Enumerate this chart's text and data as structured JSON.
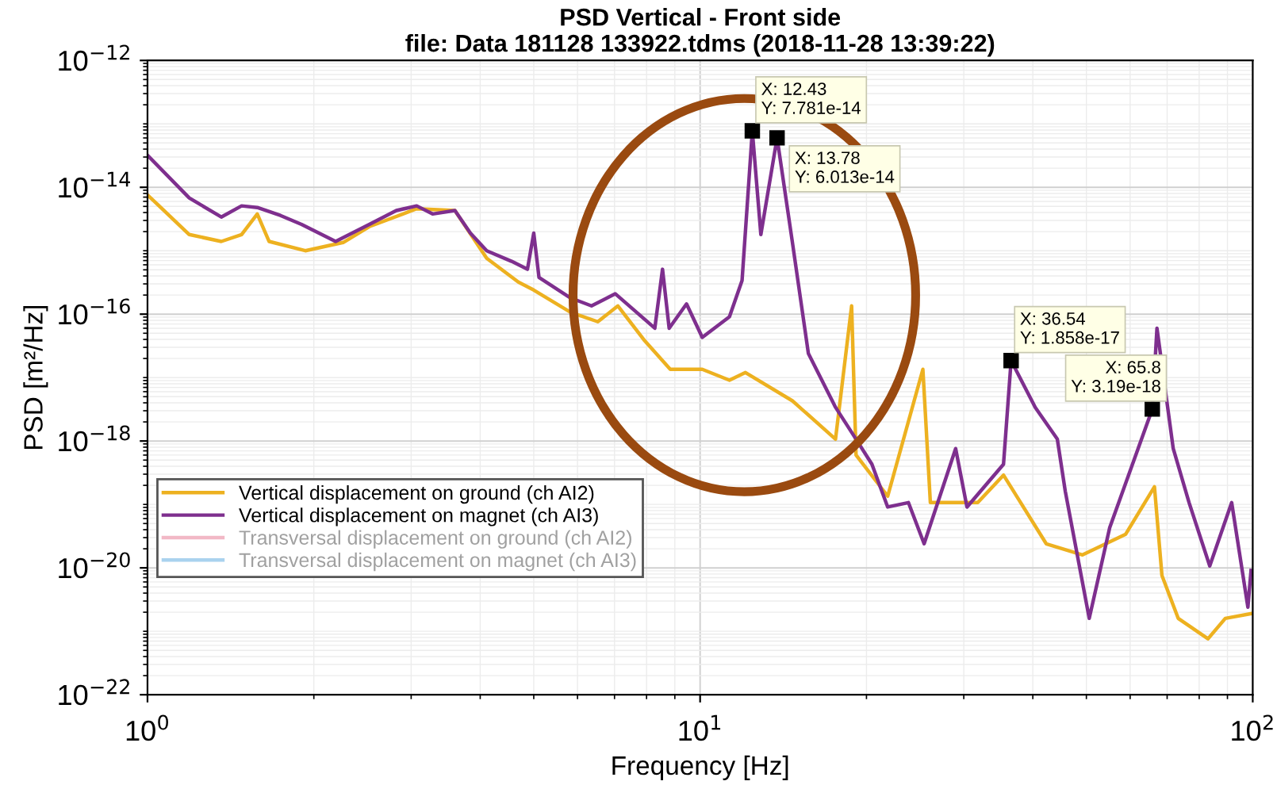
{
  "chart_data": {
    "type": "line",
    "title": "PSD Vertical - Front side",
    "subtitle": "file: Data 181128 133922.tdms (2018-11-28 13:39:22)",
    "xlabel": "Frequency [Hz]",
    "ylabel": "PSD [m²/Hz]",
    "log": "xy",
    "grid": true,
    "legend": "bottom left",
    "xlim": [
      1,
      100
    ],
    "xticks": [
      {
        "value": 1,
        "label": "10$^{0}$"
      },
      {
        "value": 10,
        "label": "10$^{1}$"
      },
      {
        "value": 100,
        "label": "10$^{2}$"
      }
    ],
    "ylim": [
      1e-22,
      1e-12
    ],
    "yticks": [
      {
        "value": 1e-22,
        "label": "10$^{−22}$"
      },
      {
        "value": 1e-20,
        "label": "10$^{−20}$"
      },
      {
        "value": 1e-18,
        "label": "10$^{−18}$"
      },
      {
        "value": 1e-16,
        "label": "10$^{−16}$"
      },
      {
        "value": 1e-14,
        "label": "10$^{−14}$"
      },
      {
        "value": 1e-12,
        "label": "10$^{−12}$"
      }
    ],
    "series": [
      {
        "name": "Vertical displacement on ground (ch AI2)",
        "color": "#edb120",
        "x": [
          1,
          1.19,
          1.36,
          1.48,
          1.58,
          1.66,
          1.93,
          2.26,
          2.52,
          3.07,
          3.6,
          4.11,
          4.69,
          5.0,
          5.83,
          6.53,
          7.1,
          7.94,
          8.83,
          10.09,
          11.3,
          12.08,
          14.69,
          17.58,
          18.8,
          19.15,
          21.85,
          25.3,
          26.1,
          31.8,
          35.4,
          42.3,
          49.2,
          58.9,
          66.4,
          68.5,
          73.3,
          83.0,
          89.2,
          99.3
        ],
        "values": [
          7.6e-15,
          1.8e-15,
          1.4e-15,
          1.8e-15,
          3.8e-15,
          1.4e-15,
          1e-15,
          1.35e-15,
          2.4e-15,
          4.6e-15,
          4.3e-15,
          7.6e-16,
          3.2e-16,
          2.4e-16,
          1.07e-16,
          7.6e-17,
          1.35e-16,
          3.8e-17,
          1.35e-17,
          1.35e-17,
          9.1e-18,
          1.2e-17,
          4.3e-18,
          1.07e-18,
          1.35e-16,
          6e-19,
          1.35e-19,
          1.35e-17,
          1.07e-19,
          1.07e-19,
          2.9e-19,
          2.4e-20,
          1.6e-20,
          3.4e-20,
          1.9e-19,
          7.6e-21,
          1.6e-21,
          7.6e-22,
          1.6e-21,
          1.9e-21
        ]
      },
      {
        "name": "Vertical displacement on magnet (ch AI3)",
        "color": "#7e2f8e",
        "x": [
          1,
          1.19,
          1.36,
          1.48,
          1.58,
          1.74,
          1.9,
          2.19,
          2.52,
          2.82,
          3.07,
          3.28,
          3.6,
          3.84,
          4.11,
          4.56,
          4.87,
          5.0,
          5.11,
          5.83,
          6.36,
          7.02,
          8.28,
          8.55,
          8.79,
          9.45,
          10.09,
          11.3,
          11.91,
          12.43,
          12.88,
          13.78,
          14.69,
          15.7,
          17.58,
          19.15,
          20.46,
          21.85,
          23.82,
          25.43,
          29.0,
          30.4,
          35.4,
          36.54,
          40.4,
          44.3,
          45.8,
          50.6,
          55.1,
          65.8,
          67.1,
          71.8,
          76.7,
          83.6,
          91.6,
          98.0,
          99.3
        ],
        "values": [
          3.2e-14,
          6.8e-15,
          3.4e-15,
          5.1e-15,
          4.8e-15,
          3.6e-15,
          2.6e-15,
          1.4e-15,
          2.6e-15,
          4.3e-15,
          5.1e-15,
          3.8e-15,
          4.3e-15,
          1.9e-15,
          1e-15,
          6.8e-16,
          5.1e-16,
          1.9e-15,
          3.8e-16,
          1.8e-16,
          1.35e-16,
          2.1e-16,
          6e-17,
          5.1e-16,
          6e-17,
          1.45e-16,
          4.3e-17,
          9.1e-17,
          3.4e-16,
          7.781e-14,
          1.8e-15,
          6.013e-14,
          1.35e-15,
          2.4e-17,
          3.4e-18,
          1.07e-18,
          4.3e-19,
          9.1e-20,
          1.07e-19,
          2.4e-20,
          7.6e-19,
          9.1e-20,
          4.3e-19,
          1.858e-17,
          3.4e-18,
          1.07e-18,
          1.6e-19,
          1.6e-21,
          4.3e-20,
          3.19e-18,
          6e-17,
          7.6e-19,
          1.07e-19,
          1.07e-20,
          1.07e-19,
          2.4e-21,
          9.1e-21
        ]
      },
      {
        "name": "Transversal displacement on ground (ch AI2)",
        "color": "#f2b8c6"
      },
      {
        "name": "Transversal displacement on magnet (ch AI3)",
        "color": "#a9d2ee"
      }
    ],
    "annotations": [
      {
        "text": "X: 12.43\nY: 7.781e-14",
        "x": 12.43,
        "y": 7.781e-14
      },
      {
        "text": "X: 13.78\nY: 6.013e-14",
        "x": 13.78,
        "y": 6.013e-14
      },
      {
        "text": "X: 36.54\nY: 1.858e-17",
        "x": 36.54,
        "y": 1.858e-17
      },
      {
        "text": "X: 65.8\nY: 3.19e-18",
        "x": 65.8,
        "y": 3.19e-18
      }
    ]
  }
}
